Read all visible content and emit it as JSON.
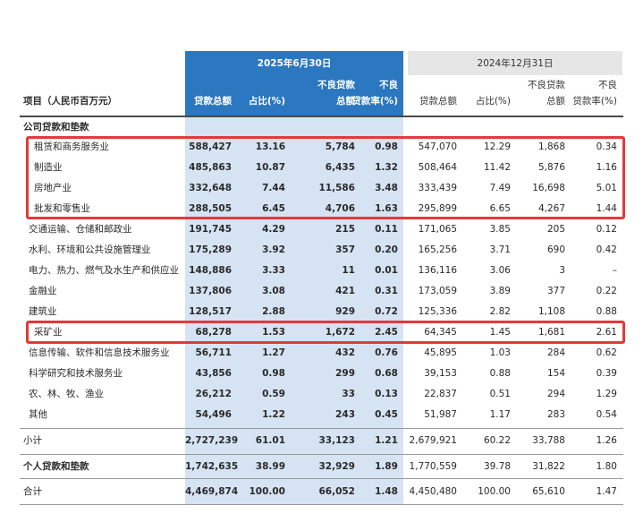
{
  "header": {
    "item_label": "项目（人民币百万元）",
    "period_2025": "2025年6月30日",
    "period_2024": "2024年12月31日",
    "cols_2025": [
      "贷款总额",
      "占比(%)",
      "不良贷款总额",
      "不良贷款率(%)"
    ],
    "cols_2024": [
      "贷款总额",
      "占比(%)",
      "不良贷款总额",
      "不良贷款率(%)"
    ],
    "npl_total_l1": "不良贷款",
    "npl_total_l2": "总额",
    "npl_rate_l1": "不良",
    "npl_rate_l2": "贷款率(%)"
  },
  "section_corporate": "公司贷款和垫款",
  "rows": [
    {
      "name": "租赁和商务服务业",
      "a": "588,427",
      "b": "13.16",
      "c": "5,784",
      "d": "0.98",
      "e": "547,070",
      "f": "12.29",
      "g": "1,868",
      "h": "0.34"
    },
    {
      "name": "制造业",
      "a": "485,863",
      "b": "10.87",
      "c": "6,435",
      "d": "1.32",
      "e": "508,464",
      "f": "11.42",
      "g": "5,876",
      "h": "1.16"
    },
    {
      "name": "房地产业",
      "a": "332,648",
      "b": "7.44",
      "c": "11,586",
      "d": "3.48",
      "e": "333,439",
      "f": "7.49",
      "g": "16,698",
      "h": "5.01"
    },
    {
      "name": "批发和零售业",
      "a": "288,505",
      "b": "6.45",
      "c": "4,706",
      "d": "1.63",
      "e": "295,899",
      "f": "6.65",
      "g": "4,267",
      "h": "1.44"
    },
    {
      "name": "交通运输、仓储和邮政业",
      "a": "191,745",
      "b": "4.29",
      "c": "215",
      "d": "0.11",
      "e": "171,065",
      "f": "3.85",
      "g": "205",
      "h": "0.12"
    },
    {
      "name": "水利、环境和公共设施管理业",
      "a": "175,289",
      "b": "3.92",
      "c": "357",
      "d": "0.20",
      "e": "165,256",
      "f": "3.71",
      "g": "690",
      "h": "0.42"
    },
    {
      "name": "电力、热力、燃气及水生产和供应业",
      "a": "148,886",
      "b": "3.33",
      "c": "11",
      "d": "0.01",
      "e": "136,116",
      "f": "3.06",
      "g": "3",
      "h": "–"
    },
    {
      "name": "金融业",
      "a": "137,806",
      "b": "3.08",
      "c": "421",
      "d": "0.31",
      "e": "173,059",
      "f": "3.89",
      "g": "377",
      "h": "0.22"
    },
    {
      "name": "建筑业",
      "a": "128,517",
      "b": "2.88",
      "c": "929",
      "d": "0.72",
      "e": "125,336",
      "f": "2.82",
      "g": "1,108",
      "h": "0.88"
    },
    {
      "name": "采矿业",
      "a": "68,278",
      "b": "1.53",
      "c": "1,672",
      "d": "2.45",
      "e": "64,345",
      "f": "1.45",
      "g": "1,681",
      "h": "2.61"
    },
    {
      "name": "信息传输、软件和信息技术服务业",
      "a": "56,711",
      "b": "1.27",
      "c": "432",
      "d": "0.76",
      "e": "45,895",
      "f": "1.03",
      "g": "284",
      "h": "0.62"
    },
    {
      "name": "科学研究和技术服务业",
      "a": "43,856",
      "b": "0.98",
      "c": "299",
      "d": "0.68",
      "e": "39,153",
      "f": "0.88",
      "g": "154",
      "h": "0.39"
    },
    {
      "name": "农、林、牧、渔业",
      "a": "26,212",
      "b": "0.59",
      "c": "33",
      "d": "0.13",
      "e": "22,837",
      "f": "0.51",
      "g": "294",
      "h": "1.29"
    },
    {
      "name": "其他",
      "a": "54,496",
      "b": "1.22",
      "c": "243",
      "d": "0.45",
      "e": "51,987",
      "f": "1.17",
      "g": "283",
      "h": "0.54"
    }
  ],
  "subtotal": {
    "name": "小计",
    "a": "2,727,239",
    "b": "61.01",
    "c": "33,123",
    "d": "1.21",
    "e": "2,679,921",
    "f": "60.22",
    "g": "33,788",
    "h": "1.26"
  },
  "personal": {
    "name": "个人贷款和垫款",
    "a": "1,742,635",
    "b": "38.99",
    "c": "32,929",
    "d": "1.89",
    "e": "1,770,559",
    "f": "39.78",
    "g": "31,822",
    "h": "1.80"
  },
  "total": {
    "name": "合计",
    "a": "4,469,874",
    "b": "100.00",
    "c": "66,052",
    "d": "1.48",
    "e": "4,450,480",
    "f": "100.00",
    "g": "65,610",
    "h": "1.47"
  },
  "colors": {
    "accent_blue": "#2b77c0",
    "band_blue": "#d5e3f3",
    "highlight_red": "#e23a3a"
  }
}
